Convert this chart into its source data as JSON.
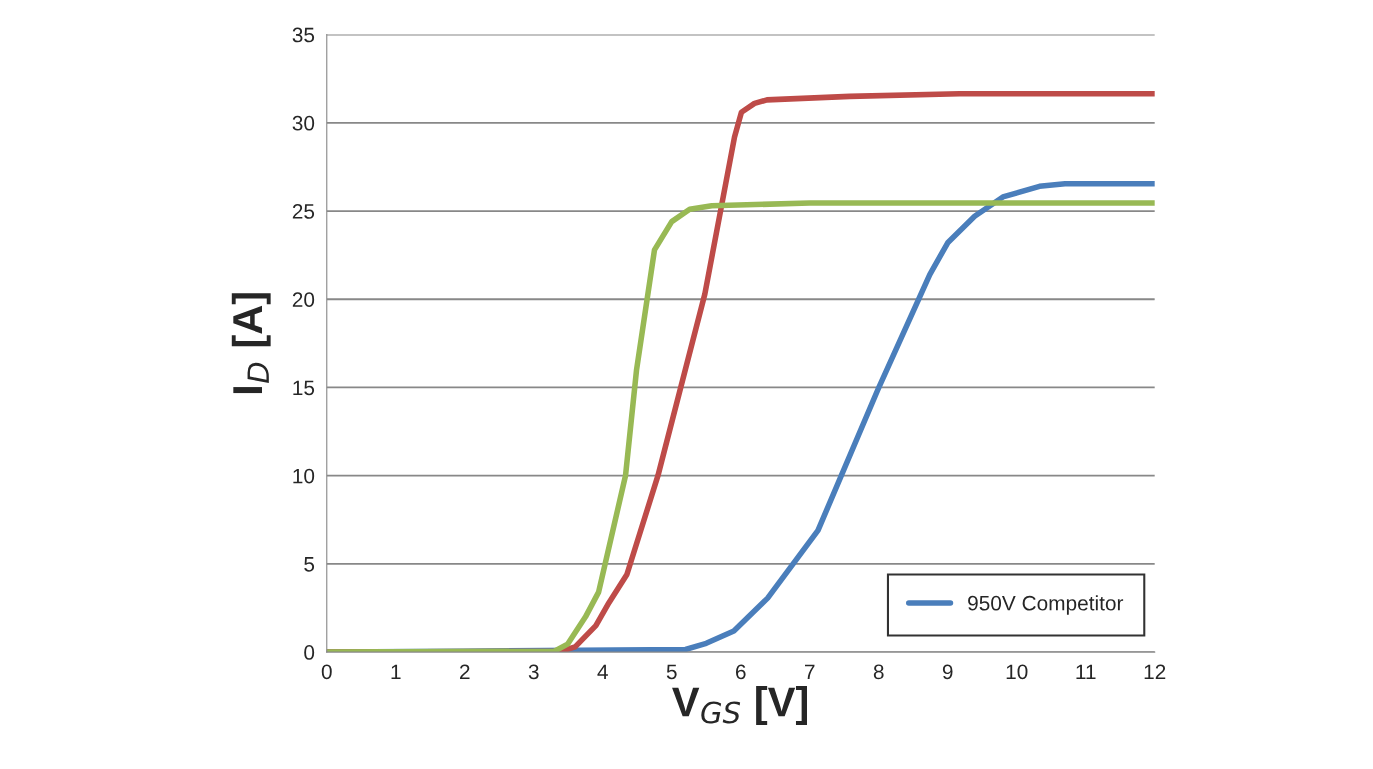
{
  "chart_data": {
    "type": "line",
    "xlabel": "V$_{GS}$ [V]",
    "ylabel": "I$_{D}$ [A]",
    "xlim": [
      0,
      12
    ],
    "xticks": [
      0,
      1,
      2,
      3,
      4,
      5,
      6,
      7,
      8,
      9,
      10,
      11,
      12
    ],
    "ylim": [
      0,
      35
    ],
    "yticks": [
      0,
      5,
      10,
      15,
      20,
      25,
      30,
      35
    ],
    "grid": "y",
    "legend": "bottom right",
    "marker": "none",
    "line_style": "solid",
    "series": [
      {
        "name": "950V Competitor",
        "color": "#4a7ebb",
        "x": [
          0,
          2,
          5.2,
          5.5,
          5.9,
          6.39,
          7.12,
          7.99,
          8.74,
          9.0,
          9.39,
          9.8,
          10.33,
          10.7,
          12
        ],
        "values": [
          0,
          0.05,
          0.15,
          0.5,
          1.2,
          3.06,
          6.9,
          14.9,
          21.4,
          23.2,
          24.7,
          25.8,
          26.4,
          26.55,
          26.55
        ]
      },
      {
        "color": "#be4b48",
        "x": [
          0,
          3.4,
          3.6,
          3.9,
          4.09,
          4.35,
          4.8,
          5.48,
          5.91,
          6.01,
          6.2,
          6.38,
          7.58,
          9.17,
          12
        ],
        "values": [
          0,
          0.05,
          0.3,
          1.5,
          2.8,
          4.4,
          10,
          20.3,
          29.2,
          30.6,
          31.1,
          31.3,
          31.5,
          31.65,
          31.65
        ]
      },
      {
        "color": "#98b954",
        "x": [
          0,
          3.3,
          3.49,
          3.75,
          3.94,
          4.33,
          4.49,
          4.75,
          5.0,
          5.26,
          5.58,
          7,
          12
        ],
        "values": [
          0,
          0.05,
          0.45,
          2.0,
          3.4,
          10,
          16,
          22.8,
          24.4,
          25.1,
          25.3,
          25.45,
          25.45
        ]
      }
    ]
  }
}
